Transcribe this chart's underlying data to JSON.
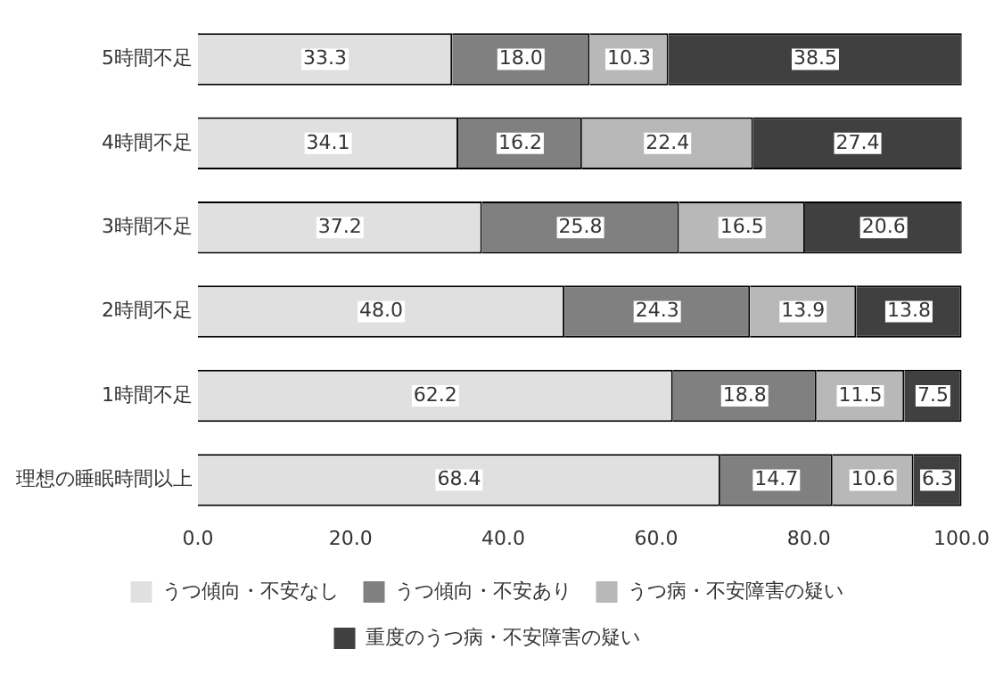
{
  "chart_data": {
    "type": "bar",
    "orientation": "horizontal",
    "stacked": true,
    "categories": [
      "5時間不足",
      "4時間不足",
      "3時間不足",
      "2時間不足",
      "1時間不足",
      "理想の睡眠時間以上"
    ],
    "series": [
      {
        "name": "うつ傾向・不安なし",
        "color": "#e0e0e0",
        "values": [
          33.3,
          34.1,
          37.2,
          48.0,
          62.2,
          68.4
        ],
        "value_labels": [
          "33.3",
          "34.1",
          "37.2",
          "48.0",
          "62.2",
          "68.4"
        ]
      },
      {
        "name": "うつ傾向・不安あり",
        "color": "#808080",
        "values": [
          18.0,
          16.2,
          25.8,
          24.3,
          18.8,
          14.7
        ],
        "value_labels": [
          "18.0",
          "16.2",
          "25.8",
          "24.3",
          "18.8",
          "14.7"
        ]
      },
      {
        "name": "うつ病・不安障害の疑い",
        "color": "#b8b8b8",
        "values": [
          10.3,
          22.4,
          16.5,
          13.9,
          11.5,
          10.6
        ],
        "value_labels": [
          "10.3",
          "22.4",
          "16.5",
          "13.9",
          "11.5",
          "10.6"
        ]
      },
      {
        "name": "重度のうつ病・不安障害の疑い",
        "color": "#404040",
        "values": [
          38.5,
          27.4,
          20.6,
          13.8,
          7.5,
          6.3
        ],
        "value_labels": [
          "38.5",
          "27.4",
          "20.6",
          "13.8",
          "7.5",
          "6.3"
        ]
      }
    ],
    "xlim": [
      0,
      100
    ],
    "xticks": [
      {
        "value": 0,
        "label": "0.0"
      },
      {
        "value": 20,
        "label": "20.0"
      },
      {
        "value": 40,
        "label": "40.0"
      },
      {
        "value": 60,
        "label": "60.0"
      },
      {
        "value": 80,
        "label": "80.0"
      },
      {
        "value": 100,
        "label": "100.0"
      }
    ],
    "grid": false,
    "legend": "bottom"
  }
}
